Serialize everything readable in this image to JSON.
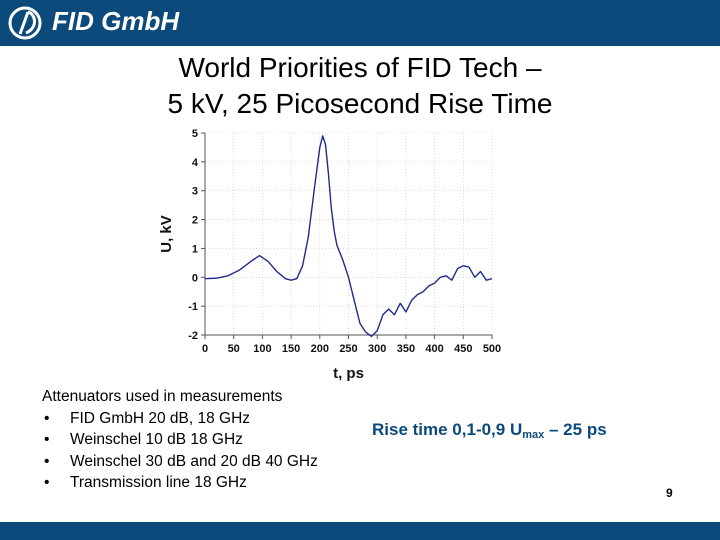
{
  "brand": {
    "name": "FID GmbH",
    "color": "#0b4a7a"
  },
  "slide": {
    "title_line1": "World Priorities of FID Tech –",
    "title_line2": "5 kV, 25 Picosecond Rise Time",
    "notes_heading": "Attenuators used in measurements",
    "notes_items": [
      "FID GmbH 20 dB, 18 GHz",
      "Weinschel 10 dB 18 GHz",
      "Weinschel 30 dB and 20 dB 40 GHz",
      "Transmission line 18 GHz"
    ],
    "rise_prefix": "Rise time 0,1-0,9 U",
    "rise_sub": "max",
    "rise_suffix": " – 25 ps",
    "page_number": "9"
  },
  "chart_data": {
    "type": "line",
    "title": "",
    "xlabel": "t, ps",
    "ylabel": "U, kV",
    "xlim": [
      0,
      500
    ],
    "ylim": [
      -2,
      5
    ],
    "x_ticks": [
      "0",
      "50",
      "100",
      "150",
      "200",
      "250",
      "300",
      "350",
      "400",
      "450",
      "500"
    ],
    "y_ticks": [
      "-2",
      "-1",
      "0",
      "1",
      "2",
      "3",
      "4",
      "5"
    ],
    "grid": true,
    "line_color": "#1f2a8c",
    "series": [
      {
        "x": [
          0,
          20,
          40,
          60,
          80,
          95,
          110,
          125,
          140,
          150,
          160,
          170,
          180,
          190,
          200,
          205,
          210,
          215,
          220,
          225,
          230,
          240,
          250,
          260,
          270,
          280,
          290,
          300,
          310,
          320,
          330,
          340,
          350,
          360,
          370,
          380,
          390,
          400,
          410,
          420,
          430,
          440,
          450,
          460,
          470,
          480,
          490,
          500
        ],
        "y": [
          -0.05,
          -0.03,
          0.05,
          0.25,
          0.55,
          0.75,
          0.55,
          0.2,
          -0.05,
          -0.1,
          -0.05,
          0.4,
          1.4,
          3.0,
          4.5,
          4.9,
          4.6,
          3.6,
          2.4,
          1.6,
          1.1,
          0.6,
          0.0,
          -0.8,
          -1.6,
          -1.9,
          -2.05,
          -1.85,
          -1.3,
          -1.1,
          -1.3,
          -0.9,
          -1.2,
          -0.8,
          -0.6,
          -0.5,
          -0.3,
          -0.2,
          0.0,
          0.05,
          -0.1,
          0.3,
          0.4,
          0.35,
          0.0,
          0.2,
          -0.1,
          -0.05
        ]
      }
    ]
  }
}
